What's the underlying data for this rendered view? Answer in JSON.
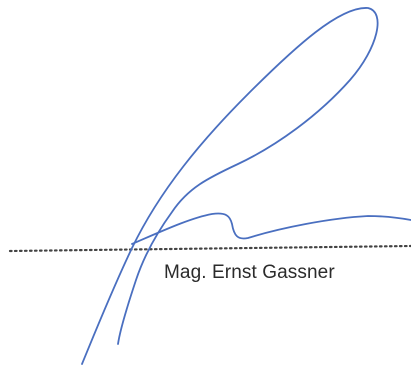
{
  "signature": {
    "signatory_name": "Mag. Ernst Gassner",
    "ink_color": "#4a6fc0",
    "line_color": "#444444"
  }
}
